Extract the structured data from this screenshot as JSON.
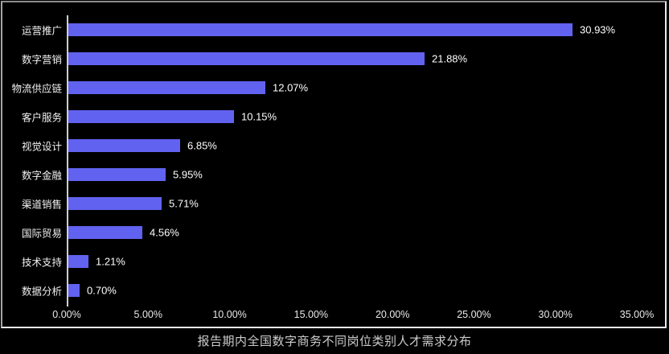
{
  "title": "报告期内全国数字商务不同岗位类别人才需求分布",
  "colors": {
    "background": "#000000",
    "bar": "#6262f0",
    "axis_line": "#cfcfcf",
    "category_label": "#f2f2f2",
    "value_label": "#ffffff",
    "tick_label": "#eaeaea",
    "title": "#cccccc",
    "panel_border_dark": "#8c8c8c",
    "panel_border_light": "#e8e8e8"
  },
  "chart_data": {
    "type": "bar",
    "orientation": "horizontal",
    "title": "报告期内全国数字商务不同岗位类别人才需求分布",
    "categories": [
      "运营推广",
      "数字营销",
      "物流供应链",
      "客户服务",
      "视觉设计",
      "数字金融",
      "渠道销售",
      "国际贸易",
      "技术支持",
      "数据分析"
    ],
    "values": [
      30.93,
      21.88,
      12.07,
      10.15,
      6.85,
      5.95,
      5.71,
      4.56,
      1.21,
      0.7
    ],
    "value_labels": [
      "30.93%",
      "21.88%",
      "12.07%",
      "10.15%",
      "6.85%",
      "5.95%",
      "5.71%",
      "4.56%",
      "1.21%",
      "0.70%"
    ],
    "xlabel": "",
    "ylabel": "",
    "xlim": [
      0,
      35
    ],
    "x_tick_values": [
      0,
      5,
      10,
      15,
      20,
      25,
      30,
      35
    ],
    "x_tick_labels": [
      "0.00%",
      "5.00%",
      "10.00%",
      "15.00%",
      "20.00%",
      "25.00%",
      "30.00%",
      "35.00%"
    ],
    "grid": false,
    "legend": false,
    "data_labels": "outside-end"
  }
}
